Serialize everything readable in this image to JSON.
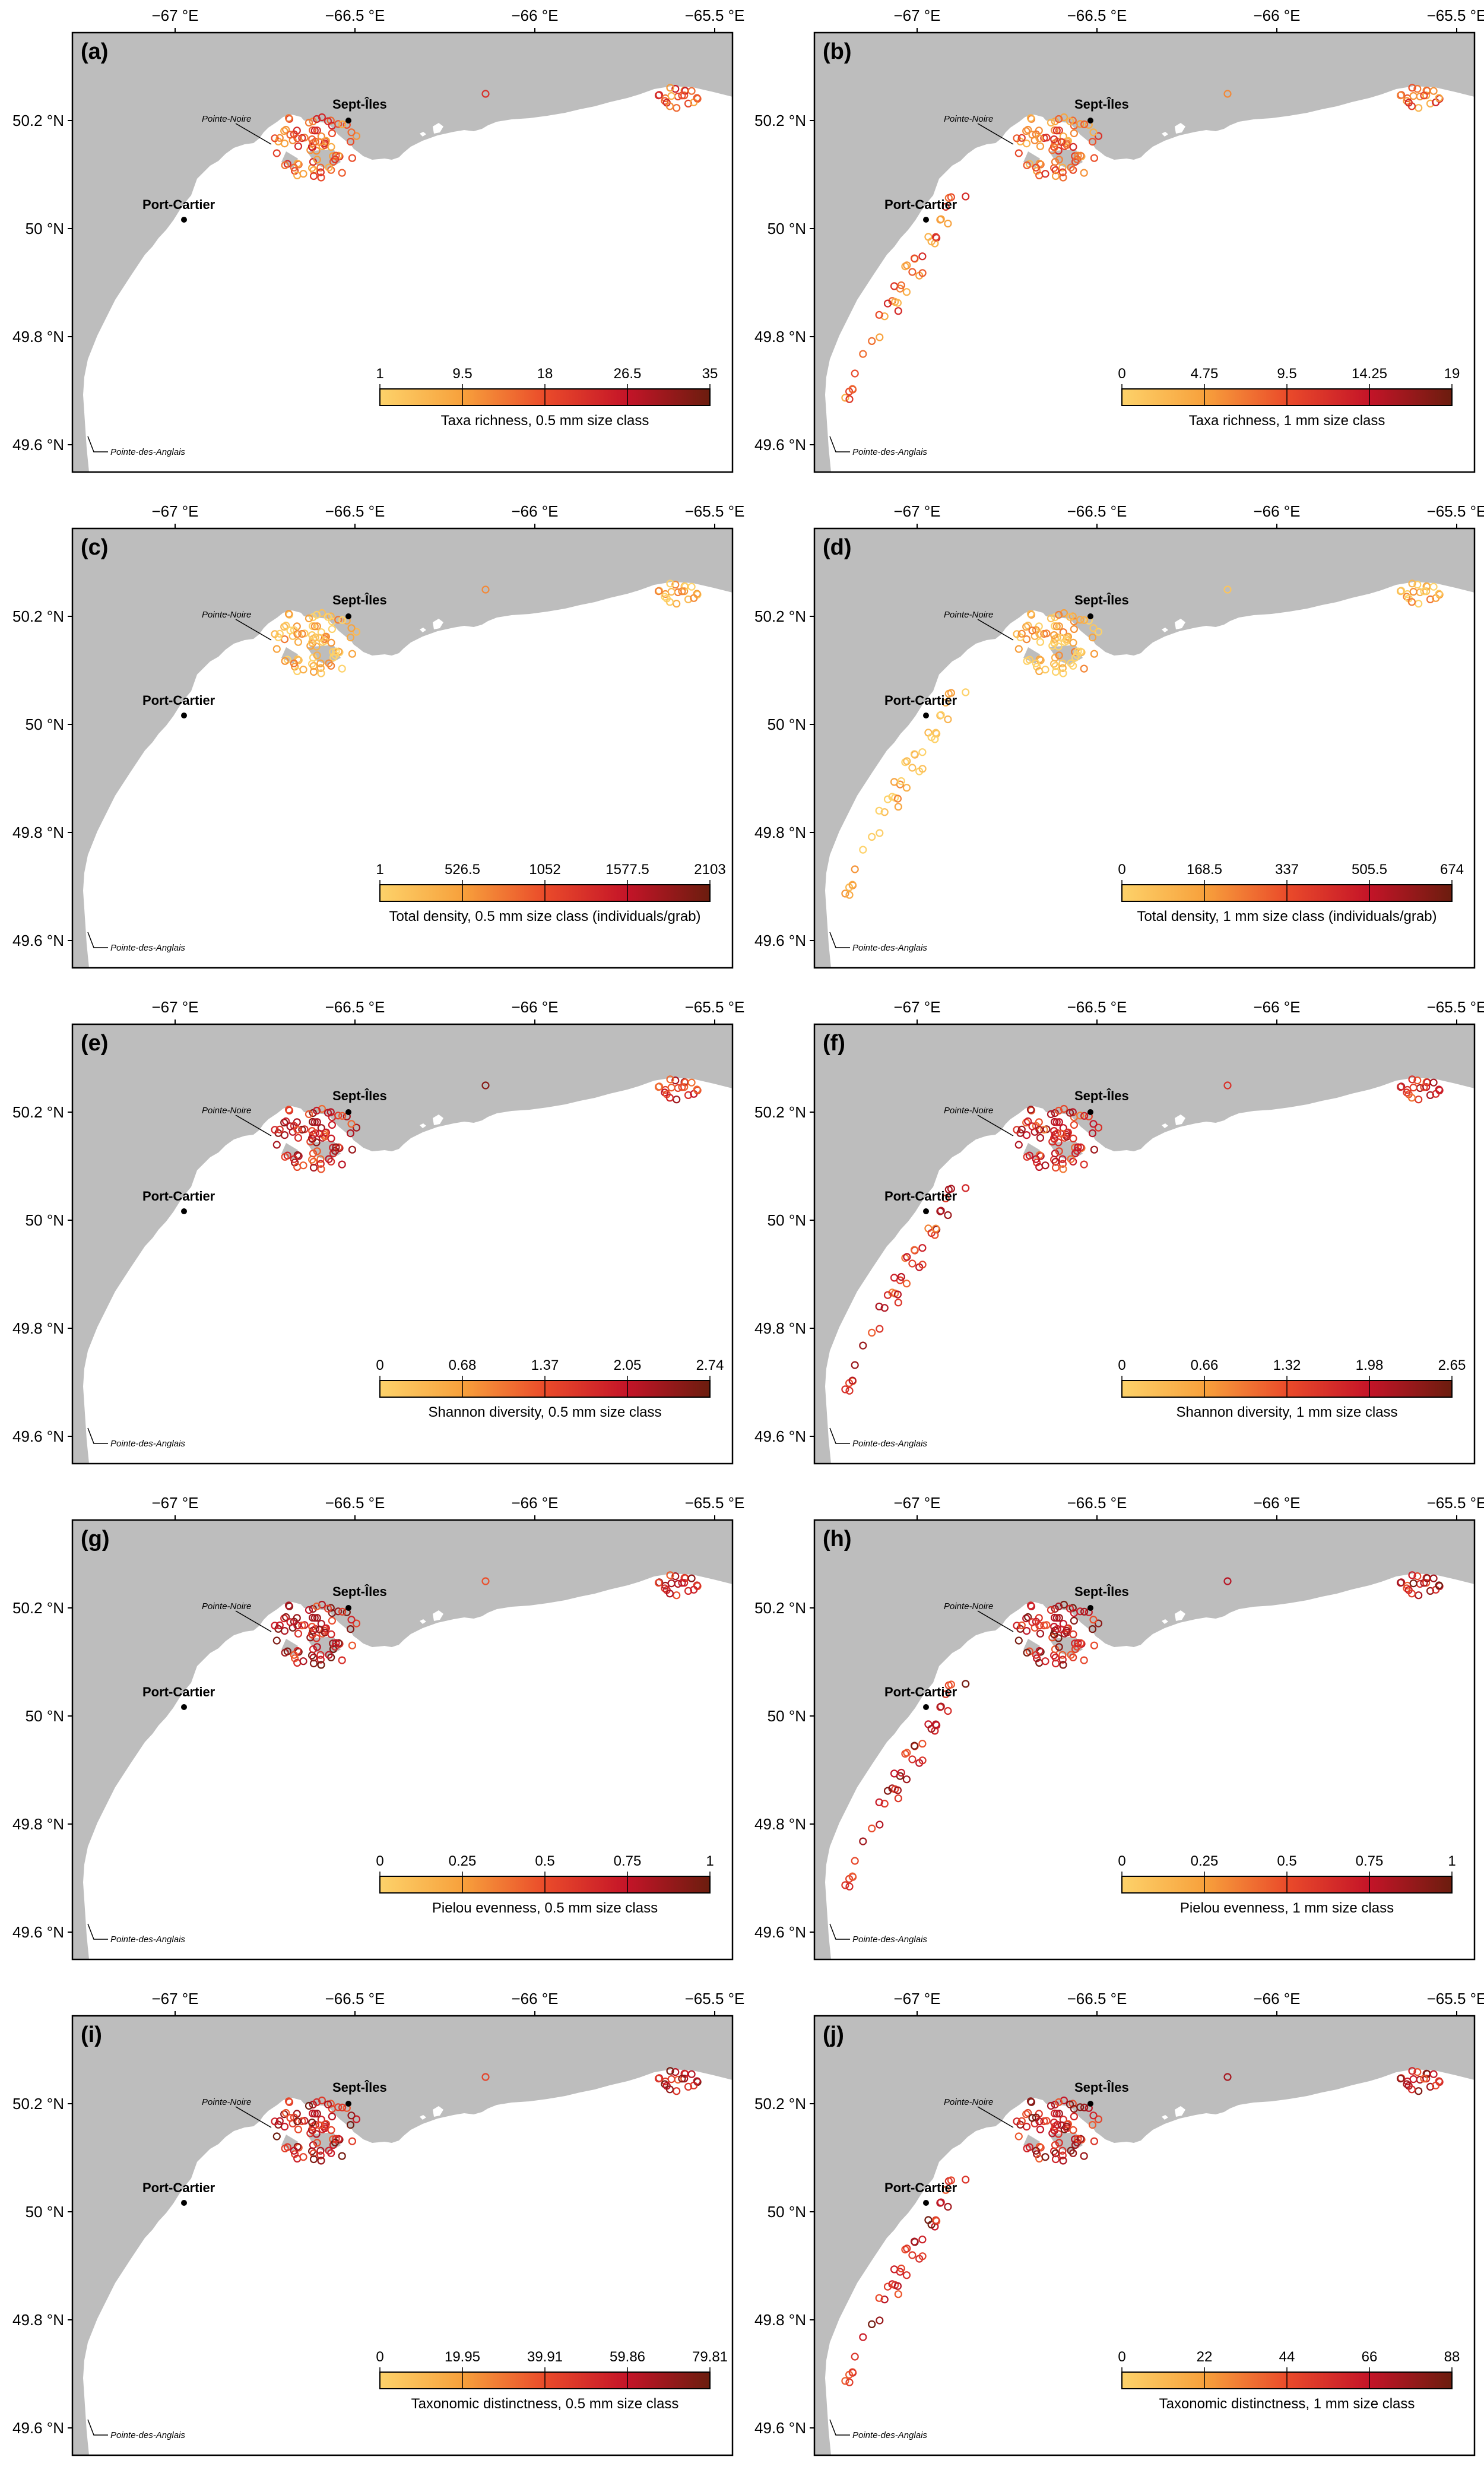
{
  "figure": {
    "axis_labels": {
      "lon_ticks": [
        "−67 °E",
        "−66.5 °E",
        "−66 °E",
        "−65.5 °E"
      ],
      "lat_ticks": [
        "50.2 °N",
        "50 °N",
        "49.8 °N",
        "49.6 °N"
      ]
    },
    "places": {
      "sept_iles": "Sept-Îles",
      "port_cartier": "Port-Cartier",
      "pointe_noire": "Pointe-Noire",
      "pointe_des_anglais": "Pointe-des-Anglais"
    },
    "colors": {
      "land": "#bdbdbd",
      "water": "#ffffff",
      "scale": [
        "#fdd26a",
        "#f7a13c",
        "#ea4b2a",
        "#c41428",
        "#6b1d0e"
      ]
    },
    "panels": [
      {
        "letter": "(a)",
        "metric": "Taxa richness",
        "size_class": "0.5 mm",
        "legend_title": "Taxa richness, 0.5 mm size class",
        "ticks": [
          "1",
          "9.5",
          "18",
          "26.5",
          "35"
        ],
        "range": [
          1,
          35
        ],
        "mean_level": 0.45,
        "sites": "basin"
      },
      {
        "letter": "(b)",
        "metric": "Taxa richness",
        "size_class": "1 mm",
        "legend_title": "Taxa richness, 1 mm size class",
        "ticks": [
          "0",
          "4.75",
          "9.5",
          "14.25",
          "19"
        ],
        "range": [
          0,
          19
        ],
        "mean_level": 0.4,
        "sites": "all"
      },
      {
        "letter": "(c)",
        "metric": "Total density",
        "size_class": "0.5 mm",
        "legend_title": "Total density, 0.5 mm size class (individuals/grab)",
        "ticks": [
          "1",
          "526.5",
          "1052",
          "1577.5",
          "2103"
        ],
        "range": [
          1,
          2103
        ],
        "mean_level": 0.1,
        "sites": "basin"
      },
      {
        "letter": "(d)",
        "metric": "Total density",
        "size_class": "1 mm",
        "legend_title": "Total density, 1 mm size class (individuals/grab)",
        "ticks": [
          "0",
          "168.5",
          "337",
          "505.5",
          "674"
        ],
        "range": [
          0,
          674
        ],
        "mean_level": 0.1,
        "sites": "all"
      },
      {
        "letter": "(e)",
        "metric": "Shannon diversity",
        "size_class": "0.5 mm",
        "legend_title": "Shannon diversity, 0.5 mm size class",
        "ticks": [
          "0",
          "0.68",
          "1.37",
          "2.05",
          "2.74"
        ],
        "range": [
          0,
          2.74
        ],
        "mean_level": 0.65,
        "sites": "basin"
      },
      {
        "letter": "(f)",
        "metric": "Shannon diversity",
        "size_class": "1 mm",
        "legend_title": "Shannon diversity, 1 mm size class",
        "ticks": [
          "0",
          "0.66",
          "1.32",
          "1.98",
          "2.65"
        ],
        "range": [
          0,
          2.65
        ],
        "mean_level": 0.6,
        "sites": "all"
      },
      {
        "letter": "(g)",
        "metric": "Pielou evenness",
        "size_class": "0.5 mm",
        "legend_title": "Pielou evenness, 0.5 mm size class",
        "ticks": [
          "0",
          "0.25",
          "0.5",
          "0.75",
          "1"
        ],
        "range": [
          0,
          1
        ],
        "mean_level": 0.72,
        "sites": "basin"
      },
      {
        "letter": "(h)",
        "metric": "Pielou evenness",
        "size_class": "1 mm",
        "legend_title": "Pielou evenness, 1 mm size class",
        "ticks": [
          "0",
          "0.25",
          "0.5",
          "0.75",
          "1"
        ],
        "range": [
          0,
          1
        ],
        "mean_level": 0.72,
        "sites": "all"
      },
      {
        "letter": "(i)",
        "metric": "Taxonomic distinctness",
        "size_class": "0.5 mm",
        "legend_title": "Taxonomic distinctness, 0.5 mm size class",
        "ticks": [
          "0",
          "19.95",
          "39.91",
          "59.86",
          "79.81"
        ],
        "range": [
          0,
          79.81
        ],
        "mean_level": 0.72,
        "sites": "basin"
      },
      {
        "letter": "(j)",
        "metric": "Taxonomic distinctness",
        "size_class": "1 mm",
        "legend_title": "Taxonomic distinctness, 1 mm size class",
        "ticks": [
          "0",
          "22",
          "44",
          "66",
          "88"
        ],
        "range": [
          0,
          88
        ],
        "mean_level": 0.72,
        "sites": "all"
      }
    ]
  }
}
